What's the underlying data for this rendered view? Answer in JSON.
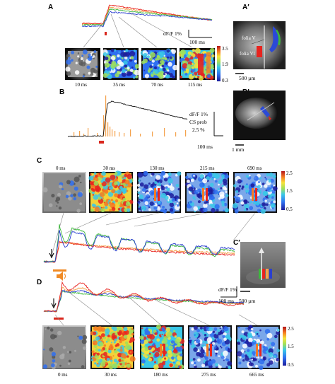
{
  "panels": {
    "A": {
      "label": "A",
      "scale_bar_value": "dF/F 1%",
      "scale_bar_time": "100 ms",
      "frame_times": [
        "10 ms",
        "35 ms",
        "70 ms",
        "115 ms"
      ],
      "colorbar_ticks": [
        "3.5",
        "1.9",
        "0.3"
      ]
    },
    "A_prime": {
      "label": "A′",
      "folia_labels": [
        "folia V",
        "folia VI"
      ],
      "scale": "500 µm"
    },
    "B": {
      "label": "B",
      "scale_bar_value": "dF/F 1%",
      "scale_bar_prob": "CS prob",
      "scale_bar_prob_value": "2.5 %",
      "scale_bar_time": "100 ms"
    },
    "B_prime": {
      "label": "B′",
      "scale": "1 mm"
    },
    "C": {
      "label": "C",
      "frame_times": [
        "0 ms",
        "30 ms",
        "130 ms",
        "215 ms",
        "690 ms"
      ],
      "colorbar_ticks": [
        "2.5",
        "1.5",
        "0.5"
      ]
    },
    "C_prime": {
      "label": "C′",
      "scale": "500 µm"
    },
    "D": {
      "label": "D",
      "scale_bar_value": "dF/F 1%",
      "scale_bar_time": "100 ms",
      "frame_times": [
        "0 ms",
        "30 ms",
        "180 ms",
        "275 ms",
        "665 ms"
      ],
      "colorbar_ticks": [
        "2.5",
        "1.5",
        "0.5"
      ]
    }
  },
  "colors": {
    "red": "#e8231e",
    "green": "#3cb83c",
    "blue": "#2a3fd0",
    "orange": "#f4a24c",
    "stim_red": "#d9261c",
    "stim_orange": "#f08a24",
    "black": "#111111"
  }
}
